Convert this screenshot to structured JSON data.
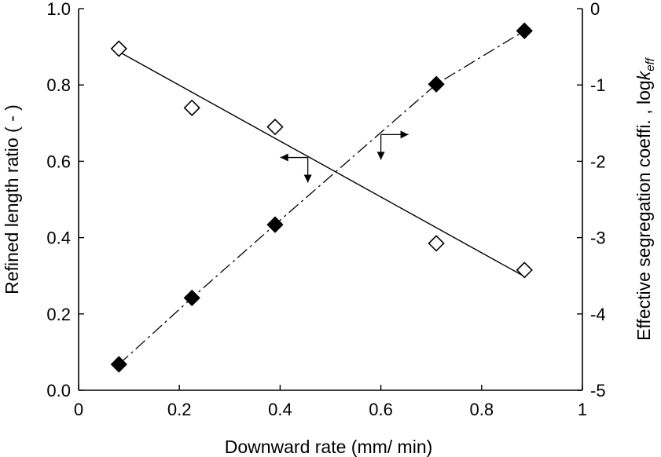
{
  "chart_data": {
    "type": "scatter",
    "xlabel": "Downward rate (mm/ min)",
    "ylabel_left": "Refined length ratio ( - )",
    "ylabel_right_main": "Effective segregation coeffi. , log",
    "ylabel_right_italic_k": "k",
    "ylabel_right_subscript": "eff",
    "xlim": [
      0,
      1
    ],
    "ylim_left": [
      0,
      1
    ],
    "ylim_right": [
      -5,
      0
    ],
    "x_ticks": [
      "0",
      "0.2",
      "0.4",
      "0.6",
      "0.8",
      "1"
    ],
    "y_left_ticks": [
      "0.0",
      "0.2",
      "0.4",
      "0.6",
      "0.8",
      "1.0"
    ],
    "y_right_ticks": [
      "-5",
      "-4",
      "-3",
      "-2",
      "-1",
      "0"
    ],
    "grid": false,
    "legend": "none",
    "series": [
      {
        "axis": "left",
        "marker": "open-diamond",
        "line": "solid linear fit",
        "x": [
          0.08,
          0.225,
          0.39,
          0.71,
          0.885
        ],
        "y": [
          0.895,
          0.74,
          0.69,
          0.385,
          0.315
        ],
        "fit": [
          [
            0.08,
            0.887
          ],
          [
            0.885,
            0.298
          ]
        ]
      },
      {
        "axis": "right",
        "marker": "filled-diamond",
        "line": "dash-dot",
        "x": [
          0.08,
          0.225,
          0.39,
          0.71,
          0.885
        ],
        "y": [
          -4.66,
          -3.79,
          -2.83,
          -0.99,
          -0.29
        ]
      }
    ],
    "annotations": [
      {
        "type": "axis-indicator",
        "points_to": "left",
        "anchor_x": 0.455,
        "anchor_y_left": 0.61
      },
      {
        "type": "axis-indicator",
        "points_to": "right",
        "anchor_x": 0.6,
        "anchor_y_left": 0.67
      }
    ],
    "colors": {
      "axes": "#000000",
      "open_marker_fill": "#ffffff",
      "filled_marker": "#000000"
    }
  }
}
